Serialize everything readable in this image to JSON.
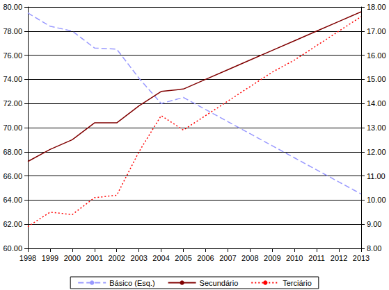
{
  "chart_data": {
    "type": "line",
    "categories": [
      "1998",
      "1999",
      "2000",
      "2001",
      "2002",
      "2003",
      "2004",
      "2005",
      "2006",
      "2007",
      "2008",
      "2009",
      "2010",
      "2011",
      "2012",
      "2013"
    ],
    "series": [
      {
        "name": "Básico (Esq.)",
        "color": "#9999ff",
        "line_style": "dashed",
        "axis": "y",
        "values": [
          79.5,
          78.4,
          78.0,
          76.6,
          76.5,
          74.1,
          72.0,
          72.5,
          71.5,
          70.5,
          69.5,
          68.5,
          67.5,
          66.5,
          65.5,
          64.5
        ]
      },
      {
        "name": "Secundário",
        "color": "#800000",
        "line_style": "solid",
        "axis": "y2",
        "values": [
          11.6,
          12.1,
          12.5,
          13.2,
          13.2,
          13.9,
          14.5,
          14.6,
          15.0,
          15.4,
          15.8,
          16.2,
          16.6,
          17.0,
          17.4,
          17.8
        ]
      },
      {
        "name": "Terciário",
        "color": "#ff0000",
        "line_style": "dotted",
        "axis": "y2",
        "values": [
          8.9,
          9.5,
          9.4,
          10.1,
          10.2,
          12.0,
          13.5,
          12.9,
          13.5,
          14.1,
          14.7,
          15.3,
          15.8,
          16.4,
          17.0,
          17.6
        ]
      }
    ],
    "ylim": [
      60,
      80
    ],
    "yticks": [
      {
        "value": 60,
        "label": "60.00"
      },
      {
        "value": 62,
        "label": "62.00"
      },
      {
        "value": 64,
        "label": "64.00"
      },
      {
        "value": 66,
        "label": "66.00"
      },
      {
        "value": 68,
        "label": "68.00"
      },
      {
        "value": 70,
        "label": "70.00"
      },
      {
        "value": 72,
        "label": "72.00"
      },
      {
        "value": 74,
        "label": "74.00"
      },
      {
        "value": 76,
        "label": "76.00"
      },
      {
        "value": 78,
        "label": "78.00"
      },
      {
        "value": 80,
        "label": "80.00"
      }
    ],
    "y2lim": [
      8,
      18
    ],
    "y2ticks": [
      {
        "value": 8,
        "label": "8.00"
      },
      {
        "value": 9,
        "label": "9.00"
      },
      {
        "value": 10,
        "label": "10.00"
      },
      {
        "value": 11,
        "label": "11.00"
      },
      {
        "value": 12,
        "label": "12.00"
      },
      {
        "value": 13,
        "label": "13.00"
      },
      {
        "value": 14,
        "label": "14.00"
      },
      {
        "value": 15,
        "label": "15.00"
      },
      {
        "value": 16,
        "label": "16.00"
      },
      {
        "value": 17,
        "label": "17.00"
      },
      {
        "value": 18,
        "label": "18.00"
      }
    ],
    "grid": true,
    "legend": "bottom"
  }
}
